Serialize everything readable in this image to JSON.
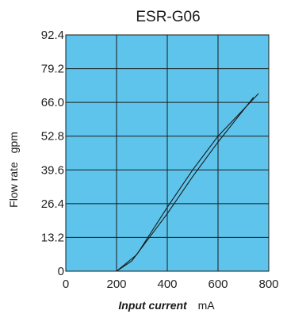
{
  "chart_data": {
    "type": "line",
    "title": "ESR-G06",
    "xlabel": "Input current",
    "xunit": "mA",
    "ylabel": "Flow rate",
    "yunit": "gpm",
    "xlim": [
      0,
      800
    ],
    "ylim": [
      0,
      92.4
    ],
    "xticks": [
      0,
      200,
      400,
      600,
      800
    ],
    "yticks": [
      0,
      13.2,
      26.4,
      39.6,
      52.8,
      66.0,
      79.2,
      92.4
    ],
    "ytick_labels": [
      "0",
      "13.2",
      "26.4",
      "39.6",
      "52.8",
      "66.0",
      "79.2",
      "92.4"
    ],
    "grid": true,
    "colors": {
      "plot_background": "#5ec4ec",
      "line": "#1a1a1a",
      "grid": "#1a1a1a"
    },
    "series": [
      {
        "x": [
          200,
          280,
          400,
          500,
          600,
          760
        ],
        "y": [
          0,
          6.5,
          25.0,
          39.6,
          52.8,
          69.5
        ]
      },
      {
        "x": [
          200,
          260,
          400,
          500,
          600,
          740
        ],
        "y": [
          0,
          4.0,
          22.5,
          37.0,
          50.5,
          68.0
        ]
      }
    ]
  }
}
